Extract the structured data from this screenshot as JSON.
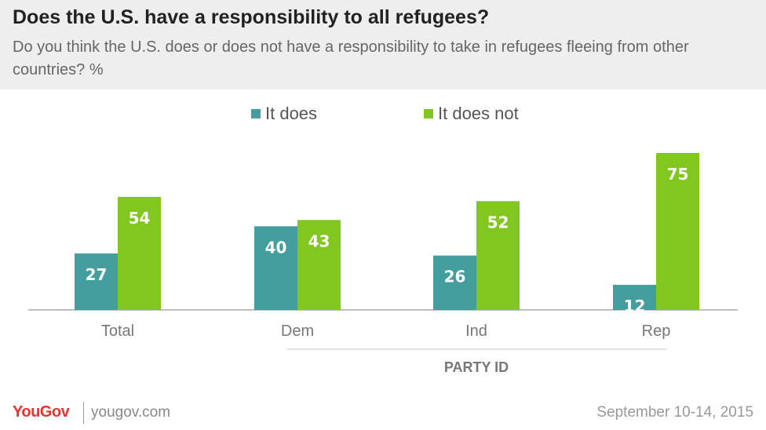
{
  "header": {
    "title": "Does the U.S. have a responsibility  to all refugees?",
    "subtitle": "Do you think the U.S. does or does not have a responsibility to take in refugees fleeing from other countries? %"
  },
  "colors": {
    "it_does": "#459e9e",
    "it_does_not": "#82c71e"
  },
  "chart_data": {
    "type": "bar",
    "categories": [
      "Total",
      "Dem",
      "Ind",
      "Rep"
    ],
    "series": [
      {
        "name": "It does",
        "values": [
          27,
          40,
          26,
          12
        ]
      },
      {
        "name": "It does not",
        "values": [
          54,
          43,
          52,
          75
        ]
      }
    ],
    "ylim": [
      0,
      80
    ],
    "group_label": "PARTY ID",
    "grid": false,
    "legend_position": "top-center"
  },
  "footer": {
    "logo": "YouGov",
    "site": "yougov.com",
    "date": "September 10-14, 2015"
  }
}
